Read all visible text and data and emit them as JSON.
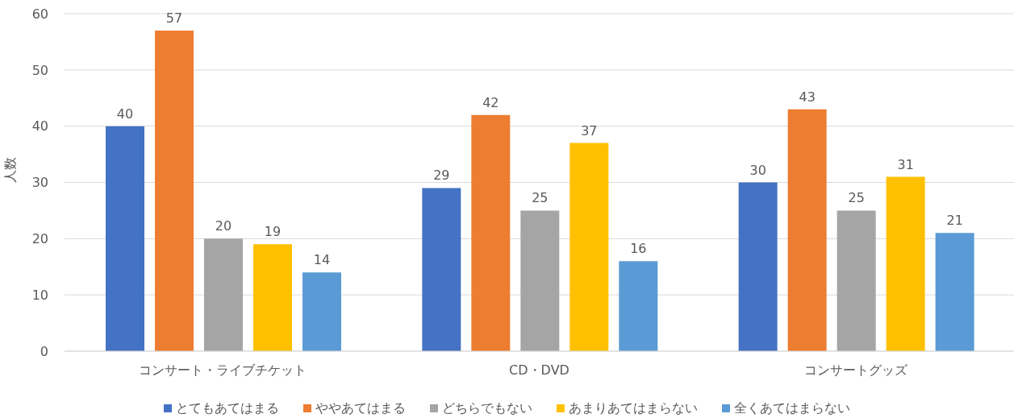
{
  "chart_data": {
    "type": "bar",
    "ylabel": "人数",
    "categories": [
      "コンサート・ライブチケット",
      "CD・DVD",
      "コンサートグッズ"
    ],
    "series": [
      {
        "name": "とてもあてはまる",
        "color": "#4472c4",
        "values": [
          40,
          29,
          30
        ]
      },
      {
        "name": "ややあてはまる",
        "color": "#ed7d31",
        "values": [
          57,
          42,
          43
        ]
      },
      {
        "name": "どちらでもない",
        "color": "#a5a5a5",
        "values": [
          20,
          25,
          25
        ]
      },
      {
        "name": "あまりあてはまらない",
        "color": "#ffc000",
        "values": [
          19,
          37,
          31
        ]
      },
      {
        "name": "全くあてはまらない",
        "color": "#5b9bd5",
        "values": [
          14,
          16,
          21
        ]
      }
    ],
    "ylim": [
      0,
      60
    ],
    "yticks": [
      0,
      10,
      20,
      30,
      40,
      50,
      60
    ],
    "grid": "y",
    "legend": "bottom",
    "data_labels": true
  }
}
